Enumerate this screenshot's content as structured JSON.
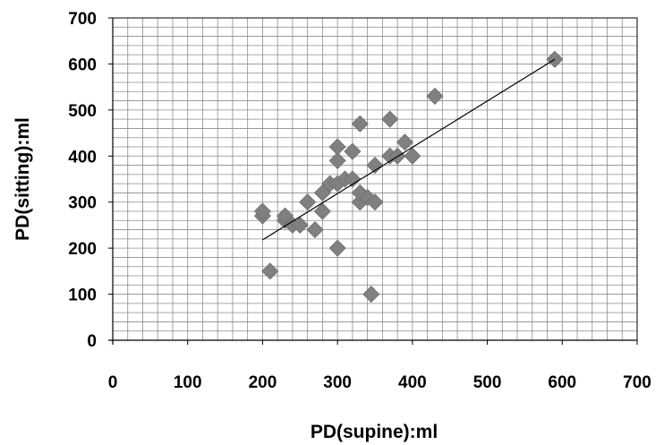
{
  "chart_data": {
    "type": "scatter",
    "xlabel": "PD(supine):ml",
    "ylabel": "PD(sitting):ml",
    "xlim": [
      0,
      700
    ],
    "ylim": [
      0,
      700
    ],
    "x_ticks": [
      "0",
      "100",
      "200",
      "300",
      "400",
      "500",
      "600",
      "700"
    ],
    "y_ticks": [
      "0",
      "100",
      "200",
      "300",
      "400",
      "500",
      "600",
      "700"
    ],
    "grid": true,
    "marker": "diamond",
    "marker_color": "#808080",
    "trendline": {
      "type": "linear",
      "x": [
        200,
        590
      ],
      "y": [
        218,
        610
      ],
      "color": "#000000"
    },
    "series": [
      {
        "points": [
          [
            200,
            270
          ],
          [
            200,
            280
          ],
          [
            210,
            150
          ],
          [
            230,
            260
          ],
          [
            230,
            270
          ],
          [
            240,
            250
          ],
          [
            250,
            250
          ],
          [
            260,
            300
          ],
          [
            270,
            240
          ],
          [
            280,
            320
          ],
          [
            280,
            280
          ],
          [
            290,
            340
          ],
          [
            300,
            390
          ],
          [
            300,
            420
          ],
          [
            300,
            200
          ],
          [
            300,
            340
          ],
          [
            310,
            350
          ],
          [
            320,
            410
          ],
          [
            320,
            350
          ],
          [
            330,
            470
          ],
          [
            330,
            300
          ],
          [
            330,
            320
          ],
          [
            340,
            310
          ],
          [
            345,
            100
          ],
          [
            350,
            380
          ],
          [
            350,
            300
          ],
          [
            370,
            480
          ],
          [
            370,
            400
          ],
          [
            380,
            400
          ],
          [
            390,
            430
          ],
          [
            400,
            400
          ],
          [
            430,
            530
          ],
          [
            590,
            610
          ]
        ]
      }
    ]
  }
}
